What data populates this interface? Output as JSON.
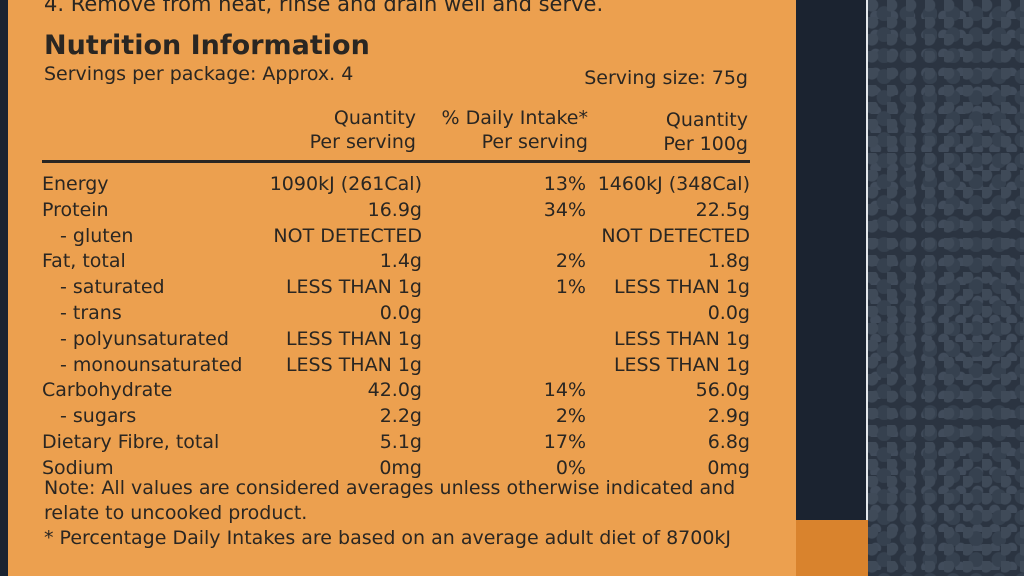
{
  "label": {
    "top_line": "4. Remove from heat, rinse and drain well and serve.",
    "title": "Nutrition Information",
    "servings": "Servings per package: Approx. 4",
    "serving_size": "Serving size: 75g",
    "headers": {
      "qty_serving": [
        "Quantity",
        "Per serving"
      ],
      "daily_intake": [
        "% Daily Intake*",
        "Per serving"
      ],
      "qty_100g": [
        "Quantity",
        "Per 100g"
      ]
    },
    "rows": [
      {
        "name": "Energy",
        "indent": false,
        "qty": "1090kJ (261Cal)",
        "di": "13%",
        "per100": "1460kJ (348Cal)"
      },
      {
        "name": "Protein",
        "indent": false,
        "qty": "16.9g",
        "di": "34%",
        "per100": "22.5g"
      },
      {
        "name": "- gluten",
        "indent": true,
        "qty": "NOT DETECTED",
        "di": "",
        "per100": "NOT DETECTED"
      },
      {
        "name": "Fat, total",
        "indent": false,
        "qty": "1.4g",
        "di": "2%",
        "per100": "1.8g"
      },
      {
        "name": "- saturated",
        "indent": true,
        "qty": "LESS THAN 1g",
        "di": "1%",
        "per100": "LESS THAN 1g"
      },
      {
        "name": "- trans",
        "indent": true,
        "qty": "0.0g",
        "di": "",
        "per100": "0.0g"
      },
      {
        "name": "- polyunsaturated",
        "indent": true,
        "qty": "LESS THAN 1g",
        "di": "",
        "per100": "LESS THAN 1g"
      },
      {
        "name": "- monounsaturated",
        "indent": true,
        "qty": "LESS THAN 1g",
        "di": "",
        "per100": "LESS THAN 1g"
      },
      {
        "name": "Carbohydrate",
        "indent": false,
        "qty": "42.0g",
        "di": "14%",
        "per100": "56.0g"
      },
      {
        "name": "- sugars",
        "indent": true,
        "qty": "2.2g",
        "di": "2%",
        "per100": "2.9g"
      },
      {
        "name": "Dietary Fibre, total",
        "indent": false,
        "qty": "5.1g",
        "di": "17%",
        "per100": "6.8g"
      },
      {
        "name": "Sodium",
        "indent": false,
        "qty": "0mg",
        "di": "0%",
        "per100": "0mg"
      }
    ],
    "note": "Note: All values are considered averages unless otherwise indicated and relate to uncooked product.",
    "footnote": "* Percentage Daily Intakes are based on an average adult diet of 8700kJ"
  },
  "colors": {
    "label_background": "#eca04f",
    "ink": "#2a2622",
    "box_dark": "#1b2330",
    "fabric": "#2b3441"
  }
}
